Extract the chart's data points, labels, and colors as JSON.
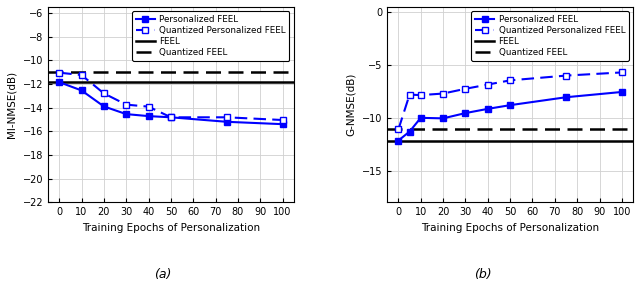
{
  "subplot_a": {
    "xlabel": "Training Epochs of Personalization",
    "ylabel": "MI-NMSE(dB)",
    "label": "(a)",
    "xlim": [
      -5,
      105
    ],
    "ylim": [
      -22,
      -5.5
    ],
    "xticks": [
      0,
      10,
      20,
      30,
      40,
      50,
      60,
      70,
      80,
      90,
      100
    ],
    "yticks": [
      -6,
      -8,
      -10,
      -12,
      -14,
      -16,
      -18,
      -20,
      -22
    ],
    "personalized_x": [
      0,
      10,
      20,
      30,
      40,
      50,
      75,
      100
    ],
    "personalized_y": [
      -11.85,
      -12.55,
      -13.9,
      -14.55,
      -14.72,
      -14.82,
      -15.2,
      -15.4
    ],
    "quant_personalized_x": [
      0,
      10,
      20,
      30,
      40,
      50,
      75,
      100
    ],
    "quant_personalized_y": [
      -11.05,
      -11.25,
      -12.8,
      -13.75,
      -13.92,
      -14.82,
      -14.82,
      -15.05
    ],
    "feel_y": -11.85,
    "quant_feel_y": -11.0
  },
  "subplot_b": {
    "xlabel": "Training Epochs of Personalization",
    "ylabel": "G-NMSE(dB)",
    "label": "(b)",
    "xlim": [
      -5,
      105
    ],
    "ylim": [
      -18,
      0.5
    ],
    "xticks": [
      0,
      10,
      20,
      30,
      40,
      50,
      60,
      70,
      80,
      90,
      100
    ],
    "yticks": [
      0,
      -5,
      -10,
      -15
    ],
    "personalized_x": [
      0,
      5,
      10,
      20,
      30,
      40,
      50,
      75,
      100
    ],
    "personalized_y": [
      -12.15,
      -11.3,
      -10.0,
      -10.05,
      -9.55,
      -9.15,
      -8.8,
      -8.05,
      -7.55
    ],
    "quant_personalized_x": [
      0,
      5,
      10,
      20,
      30,
      40,
      50,
      75,
      100
    ],
    "quant_personalized_y": [
      -11.1,
      -7.8,
      -7.85,
      -7.7,
      -7.25,
      -6.85,
      -6.45,
      -6.0,
      -5.7
    ],
    "feel_y": -12.15,
    "quant_feel_y": -11.1
  },
  "line_color": "#0000FF",
  "legend_labels": [
    "Personalized FEEL",
    "Quantized Personalized FEEL",
    "FEEL",
    "Quantized FEEL"
  ],
  "font_size": 7.5
}
